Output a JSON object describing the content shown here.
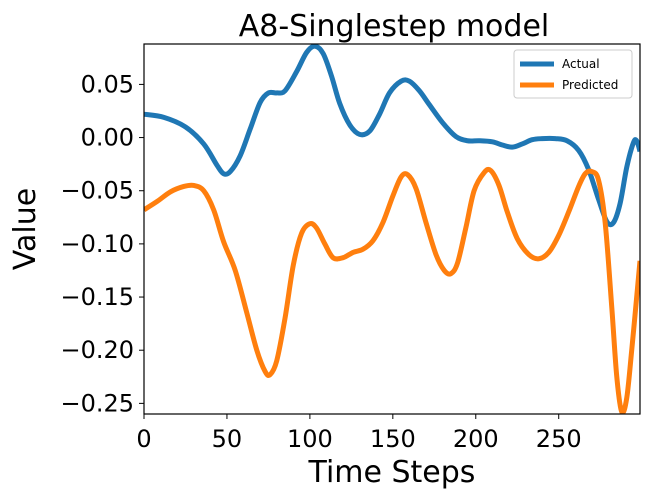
{
  "chart_data": {
    "type": "line",
    "title": "A8-Singlestep model",
    "xlabel": "Time Steps",
    "ylabel": "Value",
    "xlim": [
      0,
      299
    ],
    "ylim": [
      -0.26,
      0.088
    ],
    "xticks": [
      0,
      50,
      100,
      150,
      200,
      250
    ],
    "xtick_labels": [
      "0",
      "50",
      "100",
      "150",
      "200",
      "250"
    ],
    "yticks": [
      0.05,
      0.0,
      -0.05,
      -0.1,
      -0.15,
      -0.2,
      -0.25
    ],
    "ytick_labels": [
      "0.05",
      "0.00",
      "−0.05",
      "−0.10",
      "−0.15",
      "−0.20",
      "−0.25"
    ],
    "grid": false,
    "legend_position": "top-right",
    "series": [
      {
        "name": "Actual",
        "color": "#1f77b4",
        "points": [
          [
            0,
            0.022
          ],
          [
            12,
            0.019
          ],
          [
            25,
            0.01
          ],
          [
            36,
            -0.006
          ],
          [
            44,
            -0.026
          ],
          [
            48,
            -0.034
          ],
          [
            52,
            -0.032
          ],
          [
            58,
            -0.017
          ],
          [
            64,
            0.008
          ],
          [
            70,
            0.033
          ],
          [
            75,
            0.042
          ],
          [
            80,
            0.042
          ],
          [
            85,
            0.044
          ],
          [
            92,
            0.062
          ],
          [
            98,
            0.08
          ],
          [
            103,
            0.086
          ],
          [
            108,
            0.079
          ],
          [
            113,
            0.058
          ],
          [
            118,
            0.032
          ],
          [
            124,
            0.012
          ],
          [
            130,
            0.003
          ],
          [
            136,
            0.006
          ],
          [
            142,
            0.022
          ],
          [
            148,
            0.042
          ],
          [
            155,
            0.053
          ],
          [
            160,
            0.053
          ],
          [
            166,
            0.044
          ],
          [
            172,
            0.031
          ],
          [
            180,
            0.014
          ],
          [
            188,
            0.001
          ],
          [
            195,
            -0.003
          ],
          [
            202,
            -0.003
          ],
          [
            210,
            -0.004
          ],
          [
            216,
            -0.007
          ],
          [
            222,
            -0.009
          ],
          [
            228,
            -0.006
          ],
          [
            234,
            -0.002
          ],
          [
            240,
            -0.001
          ],
          [
            248,
            -0.001
          ],
          [
            255,
            -0.003
          ],
          [
            262,
            -0.012
          ],
          [
            268,
            -0.03
          ],
          [
            274,
            -0.058
          ],
          [
            279,
            -0.079
          ],
          [
            283,
            -0.08
          ],
          [
            287,
            -0.062
          ],
          [
            291,
            -0.028
          ],
          [
            295,
            -0.005
          ],
          [
            297,
            -0.003
          ],
          [
            299,
            -0.013
          ]
        ]
      },
      {
        "name": "Predicted",
        "color": "#ff7f0e",
        "points": [
          [
            0,
            -0.068
          ],
          [
            8,
            -0.06
          ],
          [
            16,
            -0.051
          ],
          [
            24,
            -0.046
          ],
          [
            30,
            -0.045
          ],
          [
            36,
            -0.05
          ],
          [
            42,
            -0.068
          ],
          [
            48,
            -0.098
          ],
          [
            55,
            -0.125
          ],
          [
            62,
            -0.165
          ],
          [
            68,
            -0.2
          ],
          [
            73,
            -0.22
          ],
          [
            76,
            -0.223
          ],
          [
            80,
            -0.21
          ],
          [
            85,
            -0.17
          ],
          [
            90,
            -0.12
          ],
          [
            95,
            -0.09
          ],
          [
            100,
            -0.081
          ],
          [
            104,
            -0.085
          ],
          [
            109,
            -0.1
          ],
          [
            114,
            -0.113
          ],
          [
            120,
            -0.113
          ],
          [
            126,
            -0.108
          ],
          [
            132,
            -0.105
          ],
          [
            138,
            -0.097
          ],
          [
            144,
            -0.08
          ],
          [
            150,
            -0.055
          ],
          [
            155,
            -0.037
          ],
          [
            159,
            -0.035
          ],
          [
            164,
            -0.048
          ],
          [
            170,
            -0.08
          ],
          [
            176,
            -0.11
          ],
          [
            181,
            -0.125
          ],
          [
            185,
            -0.128
          ],
          [
            189,
            -0.118
          ],
          [
            194,
            -0.085
          ],
          [
            199,
            -0.05
          ],
          [
            205,
            -0.033
          ],
          [
            209,
            -0.031
          ],
          [
            214,
            -0.045
          ],
          [
            219,
            -0.07
          ],
          [
            225,
            -0.095
          ],
          [
            232,
            -0.11
          ],
          [
            238,
            -0.114
          ],
          [
            244,
            -0.108
          ],
          [
            250,
            -0.092
          ],
          [
            256,
            -0.07
          ],
          [
            262,
            -0.046
          ],
          [
            266,
            -0.034
          ],
          [
            270,
            -0.032
          ],
          [
            274,
            -0.04
          ],
          [
            278,
            -0.08
          ],
          [
            282,
            -0.16
          ],
          [
            285,
            -0.225
          ],
          [
            288,
            -0.258
          ],
          [
            291,
            -0.245
          ],
          [
            294,
            -0.2
          ],
          [
            297,
            -0.15
          ],
          [
            299,
            -0.116
          ]
        ]
      }
    ]
  }
}
